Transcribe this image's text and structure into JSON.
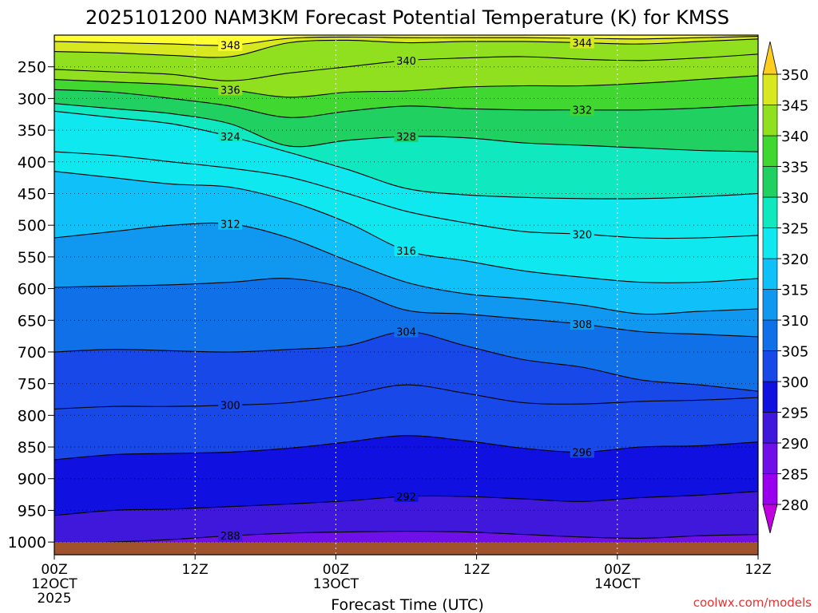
{
  "chart_data": {
    "type": "heatmap",
    "title": "2025101200 NAM3KM Forecast Potential Temperature (K) for KMSS",
    "xlabel": "Forecast Time (UTC)",
    "ylabel": "",
    "credit": "coolwx.com/models",
    "x_range_hours": [
      0,
      60
    ],
    "x_ticks": [
      {
        "hour": 0,
        "lines": [
          "00Z",
          "12OCT",
          "2025"
        ]
      },
      {
        "hour": 12,
        "lines": [
          "12Z"
        ]
      },
      {
        "hour": 24,
        "lines": [
          "00Z",
          "13OCT"
        ]
      },
      {
        "hour": 36,
        "lines": [
          "12Z"
        ]
      },
      {
        "hour": 48,
        "lines": [
          "00Z",
          "14OCT"
        ]
      },
      {
        "hour": 60,
        "lines": [
          "12Z"
        ]
      }
    ],
    "y_range_hPa": [
      1020,
      200
    ],
    "y_ticks": [
      250,
      300,
      350,
      400,
      450,
      500,
      550,
      600,
      650,
      700,
      750,
      800,
      850,
      900,
      950,
      1000
    ],
    "colorbar": {
      "unit": "K",
      "levels": [
        280,
        285,
        290,
        295,
        300,
        305,
        310,
        315,
        320,
        325,
        330,
        335,
        340,
        345,
        350
      ],
      "colors": [
        "#c000e0",
        "#9a00f0",
        "#7010e8",
        "#3f18dc",
        "#1010e0",
        "#1848e8",
        "#1070e8",
        "#1098f0",
        "#10c0f8",
        "#10e8f0",
        "#10e8c0",
        "#20d060",
        "#40d830",
        "#90e020",
        "#d8e820",
        "#ffff30",
        "#ffcc20"
      ]
    },
    "contour_interval_K": 4,
    "series": [
      {
        "name": "288",
        "values": [
          1004,
          1000,
          996,
          990,
          986,
          984,
          983,
          984,
          988,
          992,
          994,
          990,
          988
        ]
      },
      {
        "name": "292",
        "values": [
          958,
          950,
          948,
          944,
          940,
          935,
          928,
          928,
          932,
          936,
          930,
          926,
          920
        ]
      },
      {
        "name": "296",
        "values": [
          870,
          862,
          860,
          858,
          852,
          842,
          832,
          840,
          852,
          858,
          850,
          848,
          842
        ]
      },
      {
        "name": "300",
        "values": [
          790,
          786,
          786,
          784,
          780,
          768,
          752,
          765,
          780,
          782,
          778,
          776,
          772
        ]
      },
      {
        "name": "304",
        "values": [
          700,
          696,
          698,
          700,
          696,
          690,
          668,
          690,
          712,
          724,
          744,
          752,
          762
        ]
      },
      {
        "name": "308",
        "values": [
          598,
          596,
          594,
          590,
          584,
          600,
          634,
          640,
          648,
          656,
          668,
          672,
          676
        ]
      },
      {
        "name": "312",
        "values": [
          520,
          510,
          500,
          498,
          520,
          556,
          590,
          608,
          616,
          626,
          640,
          636,
          632
        ]
      },
      {
        "name": "316",
        "values": [
          415,
          425,
          435,
          440,
          462,
          496,
          540,
          556,
          572,
          582,
          590,
          590,
          584
        ]
      },
      {
        "name": "320",
        "values": [
          384,
          390,
          400,
          410,
          424,
          450,
          478,
          496,
          510,
          514,
          520,
          520,
          516
        ]
      },
      {
        "name": "324",
        "values": [
          320,
          330,
          340,
          360,
          385,
          412,
          442,
          452,
          456,
          458,
          458,
          455,
          450
        ]
      },
      {
        "name": "328",
        "values": [
          308,
          316,
          324,
          340,
          375,
          366,
          360,
          362,
          370,
          374,
          378,
          382,
          384
        ]
      },
      {
        "name": "332",
        "values": [
          286,
          290,
          300,
          312,
          330,
          320,
          312,
          316,
          318,
          318,
          318,
          315,
          310
        ]
      },
      {
        "name": "336",
        "values": [
          270,
          274,
          278,
          286,
          298,
          290,
          288,
          282,
          280,
          280,
          276,
          270,
          264
        ]
      },
      {
        "name": "340",
        "values": [
          254,
          258,
          262,
          272,
          260,
          250,
          240,
          236,
          234,
          238,
          240,
          236,
          230
        ]
      },
      {
        "name": "344",
        "values": [
          226,
          228,
          232,
          234,
          212,
          208,
          212,
          210,
          210,
          212,
          214,
          210,
          206
        ]
      },
      {
        "name": "348",
        "values": [
          210,
          212,
          214,
          216,
          205,
          203,
          204,
          204,
          204,
          205,
          206,
          204,
          202
        ]
      }
    ],
    "series_hours": [
      0,
      5,
      10,
      15,
      20,
      25,
      30,
      35,
      40,
      45,
      50,
      55,
      60
    ]
  }
}
